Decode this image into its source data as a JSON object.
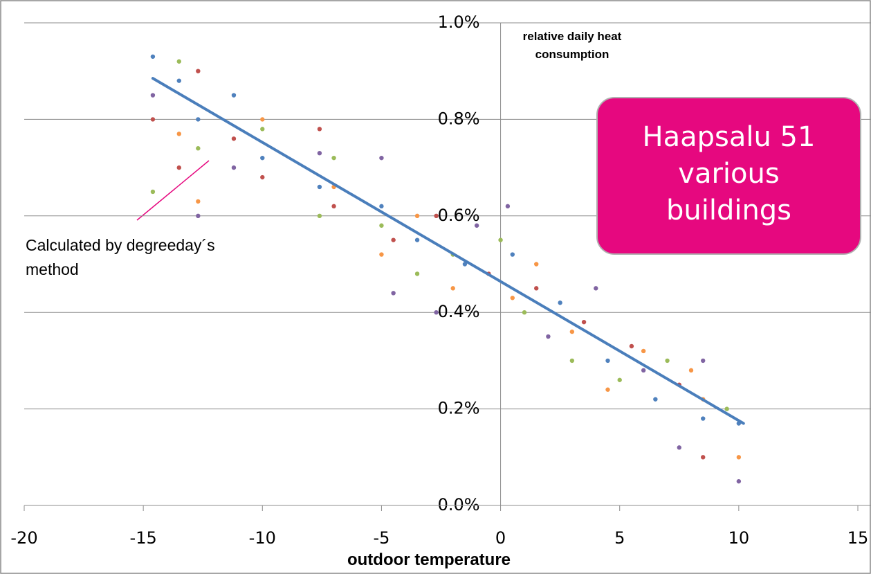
{
  "chart_data": {
    "type": "scatter",
    "y_label": "relative daily heat consumption",
    "x_label": "outdoor temperature",
    "annotations": [
      "Haapsalu 51 various buildings",
      "Calculated by degreeday´s method"
    ],
    "xlim": [
      -20,
      15
    ],
    "xticks": [
      -20,
      -15,
      -10,
      -5,
      0,
      5,
      10,
      15
    ],
    "ylim": [
      0,
      1.0
    ],
    "yticks": [
      {
        "value": 0,
        "label": "0.0%"
      },
      {
        "value": 0.2,
        "label": "0.2%"
      },
      {
        "value": 0.4,
        "label": "0.4%"
      },
      {
        "value": 0.6,
        "label": "0.6%"
      },
      {
        "value": 0.8,
        "label": "0.8%"
      },
      {
        "value": 1.0,
        "label": "1.0%"
      }
    ],
    "grid": true,
    "series": [
      {
        "color": "#4f81bd",
        "x": [
          -14.6,
          -13.5,
          -12.7,
          -11.2,
          -10,
          -7.6,
          -5,
          -3.5,
          -1.5,
          0.5,
          2.5,
          4.5,
          6.5,
          8.5,
          10
        ],
        "values": [
          0.93,
          0.88,
          0.8,
          0.85,
          0.72,
          0.66,
          0.62,
          0.55,
          0.5,
          0.52,
          0.42,
          0.3,
          0.22,
          0.18,
          0.17
        ]
      },
      {
        "color": "#c0504d",
        "x": [
          -14.6,
          -13.5,
          -12.7,
          -11.2,
          -10,
          -7.6,
          -7,
          -4.5,
          -2.7,
          -0.5,
          1.5,
          3.5,
          5.5,
          7.5,
          8.5
        ],
        "values": [
          0.8,
          0.7,
          0.9,
          0.76,
          0.68,
          0.78,
          0.62,
          0.55,
          0.6,
          0.48,
          0.45,
          0.38,
          0.33,
          0.25,
          0.1
        ]
      },
      {
        "color": "#9bbb59",
        "x": [
          -14.6,
          -13.5,
          -12.7,
          -10,
          -7.6,
          -7,
          -5,
          -3.5,
          -2,
          0,
          1,
          3,
          5,
          7,
          9.5
        ],
        "values": [
          0.65,
          0.92,
          0.74,
          0.78,
          0.6,
          0.72,
          0.58,
          0.48,
          0.52,
          0.55,
          0.4,
          0.3,
          0.26,
          0.3,
          0.2
        ]
      },
      {
        "color": "#8064a2",
        "x": [
          -14.6,
          -12.7,
          -11.2,
          -7.6,
          -5,
          -4.5,
          -2.7,
          -1,
          0.3,
          2,
          4,
          6,
          7.5,
          8.5,
          10
        ],
        "values": [
          0.85,
          0.6,
          0.7,
          0.73,
          0.72,
          0.44,
          0.4,
          0.58,
          0.62,
          0.35,
          0.45,
          0.28,
          0.12,
          0.3,
          0.05
        ]
      },
      {
        "color": "#f79646",
        "x": [
          -13.5,
          -12.7,
          -10,
          -7,
          -5,
          -3.5,
          -2,
          0.5,
          1.5,
          3,
          4.5,
          6,
          8,
          8.5,
          10
        ],
        "values": [
          0.77,
          0.63,
          0.8,
          0.66,
          0.52,
          0.6,
          0.45,
          0.43,
          0.5,
          0.36,
          0.24,
          0.32,
          0.28,
          0.22,
          0.1
        ]
      }
    ],
    "trendline": {
      "color": "#4a7ebb",
      "x": [
        -14.6,
        10.2
      ],
      "values": [
        0.885,
        0.17
      ]
    }
  }
}
